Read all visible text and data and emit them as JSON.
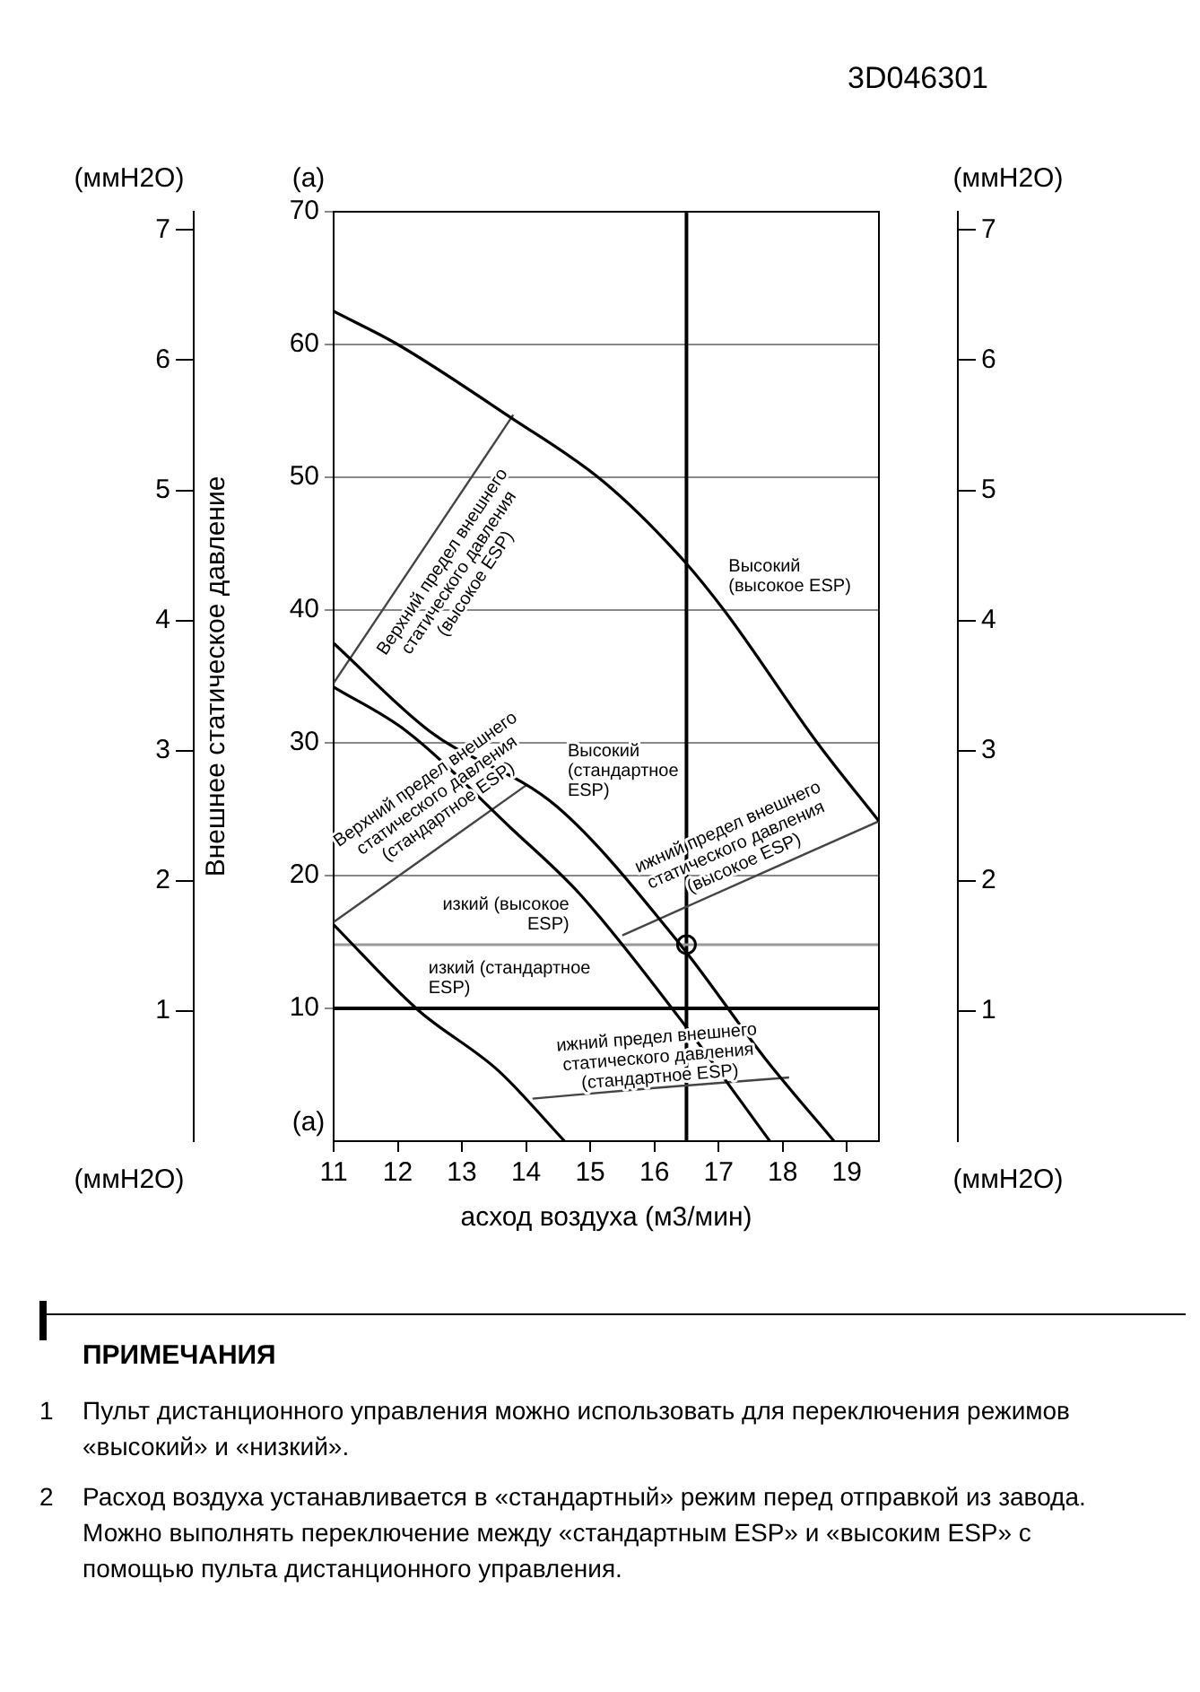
{
  "chart_data": {
    "type": "line",
    "title": "3D046301",
    "xlabel": "асход воздуха (м3/мин)",
    "ylabel": "Внешнее статическое давление",
    "xlim": [
      11,
      19.5
    ],
    "xticks": [
      11,
      12,
      13,
      14,
      15,
      16,
      17,
      18,
      19
    ],
    "ylim": [
      0,
      70
    ],
    "yticks": [
      10,
      20,
      30,
      40,
      50,
      60,
      70
    ],
    "y2lim": [
      0,
      7.14
    ],
    "y2ticks": [
      1,
      2,
      3,
      4,
      5,
      6,
      7
    ],
    "y3lim": [
      0,
      7.14
    ],
    "y3ticks": [
      1,
      2,
      3,
      4,
      5,
      6,
      7
    ],
    "grid": "y",
    "legend": false,
    "marker": "none",
    "series": [
      {
        "name": "Высокий (высокое ESP)",
        "color": "#000000",
        "x": [
          11,
          12,
          13.76,
          15.2,
          16.37,
          17.1,
          18.54,
          19.5
        ],
        "values": [
          62.5,
          60,
          54.5,
          49.7,
          44.2,
          39.9,
          30,
          24.1
        ]
      },
      {
        "name": "Высокий (стандартное ESP)",
        "color": "#000000",
        "x": [
          11,
          12.49,
          14.48,
          16.42,
          17.73,
          18.8
        ],
        "values": [
          37.5,
          30.9,
          25.2,
          14.7,
          6.2,
          0
        ]
      },
      {
        "name": "изкий (высокое ESP)",
        "color": "#000000",
        "x": [
          11,
          12.13,
          13.76,
          14.84,
          16.37,
          17.8
        ],
        "values": [
          34.2,
          30.9,
          23.6,
          18.6,
          9.4,
          0
        ]
      },
      {
        "name": "изкий (стандартное ESP)",
        "color": "#000000",
        "x": [
          11,
          12.31,
          13.57,
          14.6
        ],
        "values": [
          16.3,
          9.9,
          5.3,
          0
        ]
      },
      {
        "name": "Верхний предел внешнего статического давления (высокое ESP)",
        "color": "#444444",
        "x": [
          11,
          13.8
        ],
        "values": [
          34.5,
          54.7
        ]
      },
      {
        "name": "Верхний предел внешнего статического давления (стандартное ESP)",
        "color": "#444444",
        "x": [
          11,
          14
        ],
        "values": [
          16.5,
          26.8
        ]
      },
      {
        "name": "ижний предел внешнего статического давления (высокое ESP)",
        "color": "#444444",
        "x": [
          15.5,
          19.5
        ],
        "values": [
          15.5,
          24.1
        ]
      },
      {
        "name": "ижний предел внешнего статического давления (стандартное ESP)",
        "color": "#444444",
        "x": [
          14.1,
          16,
          18.1
        ],
        "values": [
          3.2,
          4,
          4.8
        ]
      },
      {
        "type": "scatter",
        "marker": "circle",
        "color": "#000000",
        "x": [
          16.5
        ],
        "values": [
          14.8
        ]
      }
    ],
    "ref_lines": [
      {
        "axis": "x",
        "value": 16.5,
        "color": "#000000"
      },
      {
        "axis": "y",
        "value": 10,
        "color": "#000000"
      },
      {
        "axis": "y",
        "value": 14.8,
        "color": "#999999"
      }
    ],
    "annotations": [
      "(ммH2O)",
      "(a)",
      "(ммH2O)",
      "(ммH2O)",
      "(a)",
      "(ммH2O)",
      "ПРИМЕЧАНИЯ",
      "1 Пульт дистанционного управления можно использовать для переключения режимов «высокий» и «низкий».",
      "2 Расход воздуха устанавливается в «стандартный» режим перед отправкой из завода. Можно выполнять переключение между «стандартным ESP» и «высоким ESP» с помощью пульта дистанционного управления."
    ]
  }
}
